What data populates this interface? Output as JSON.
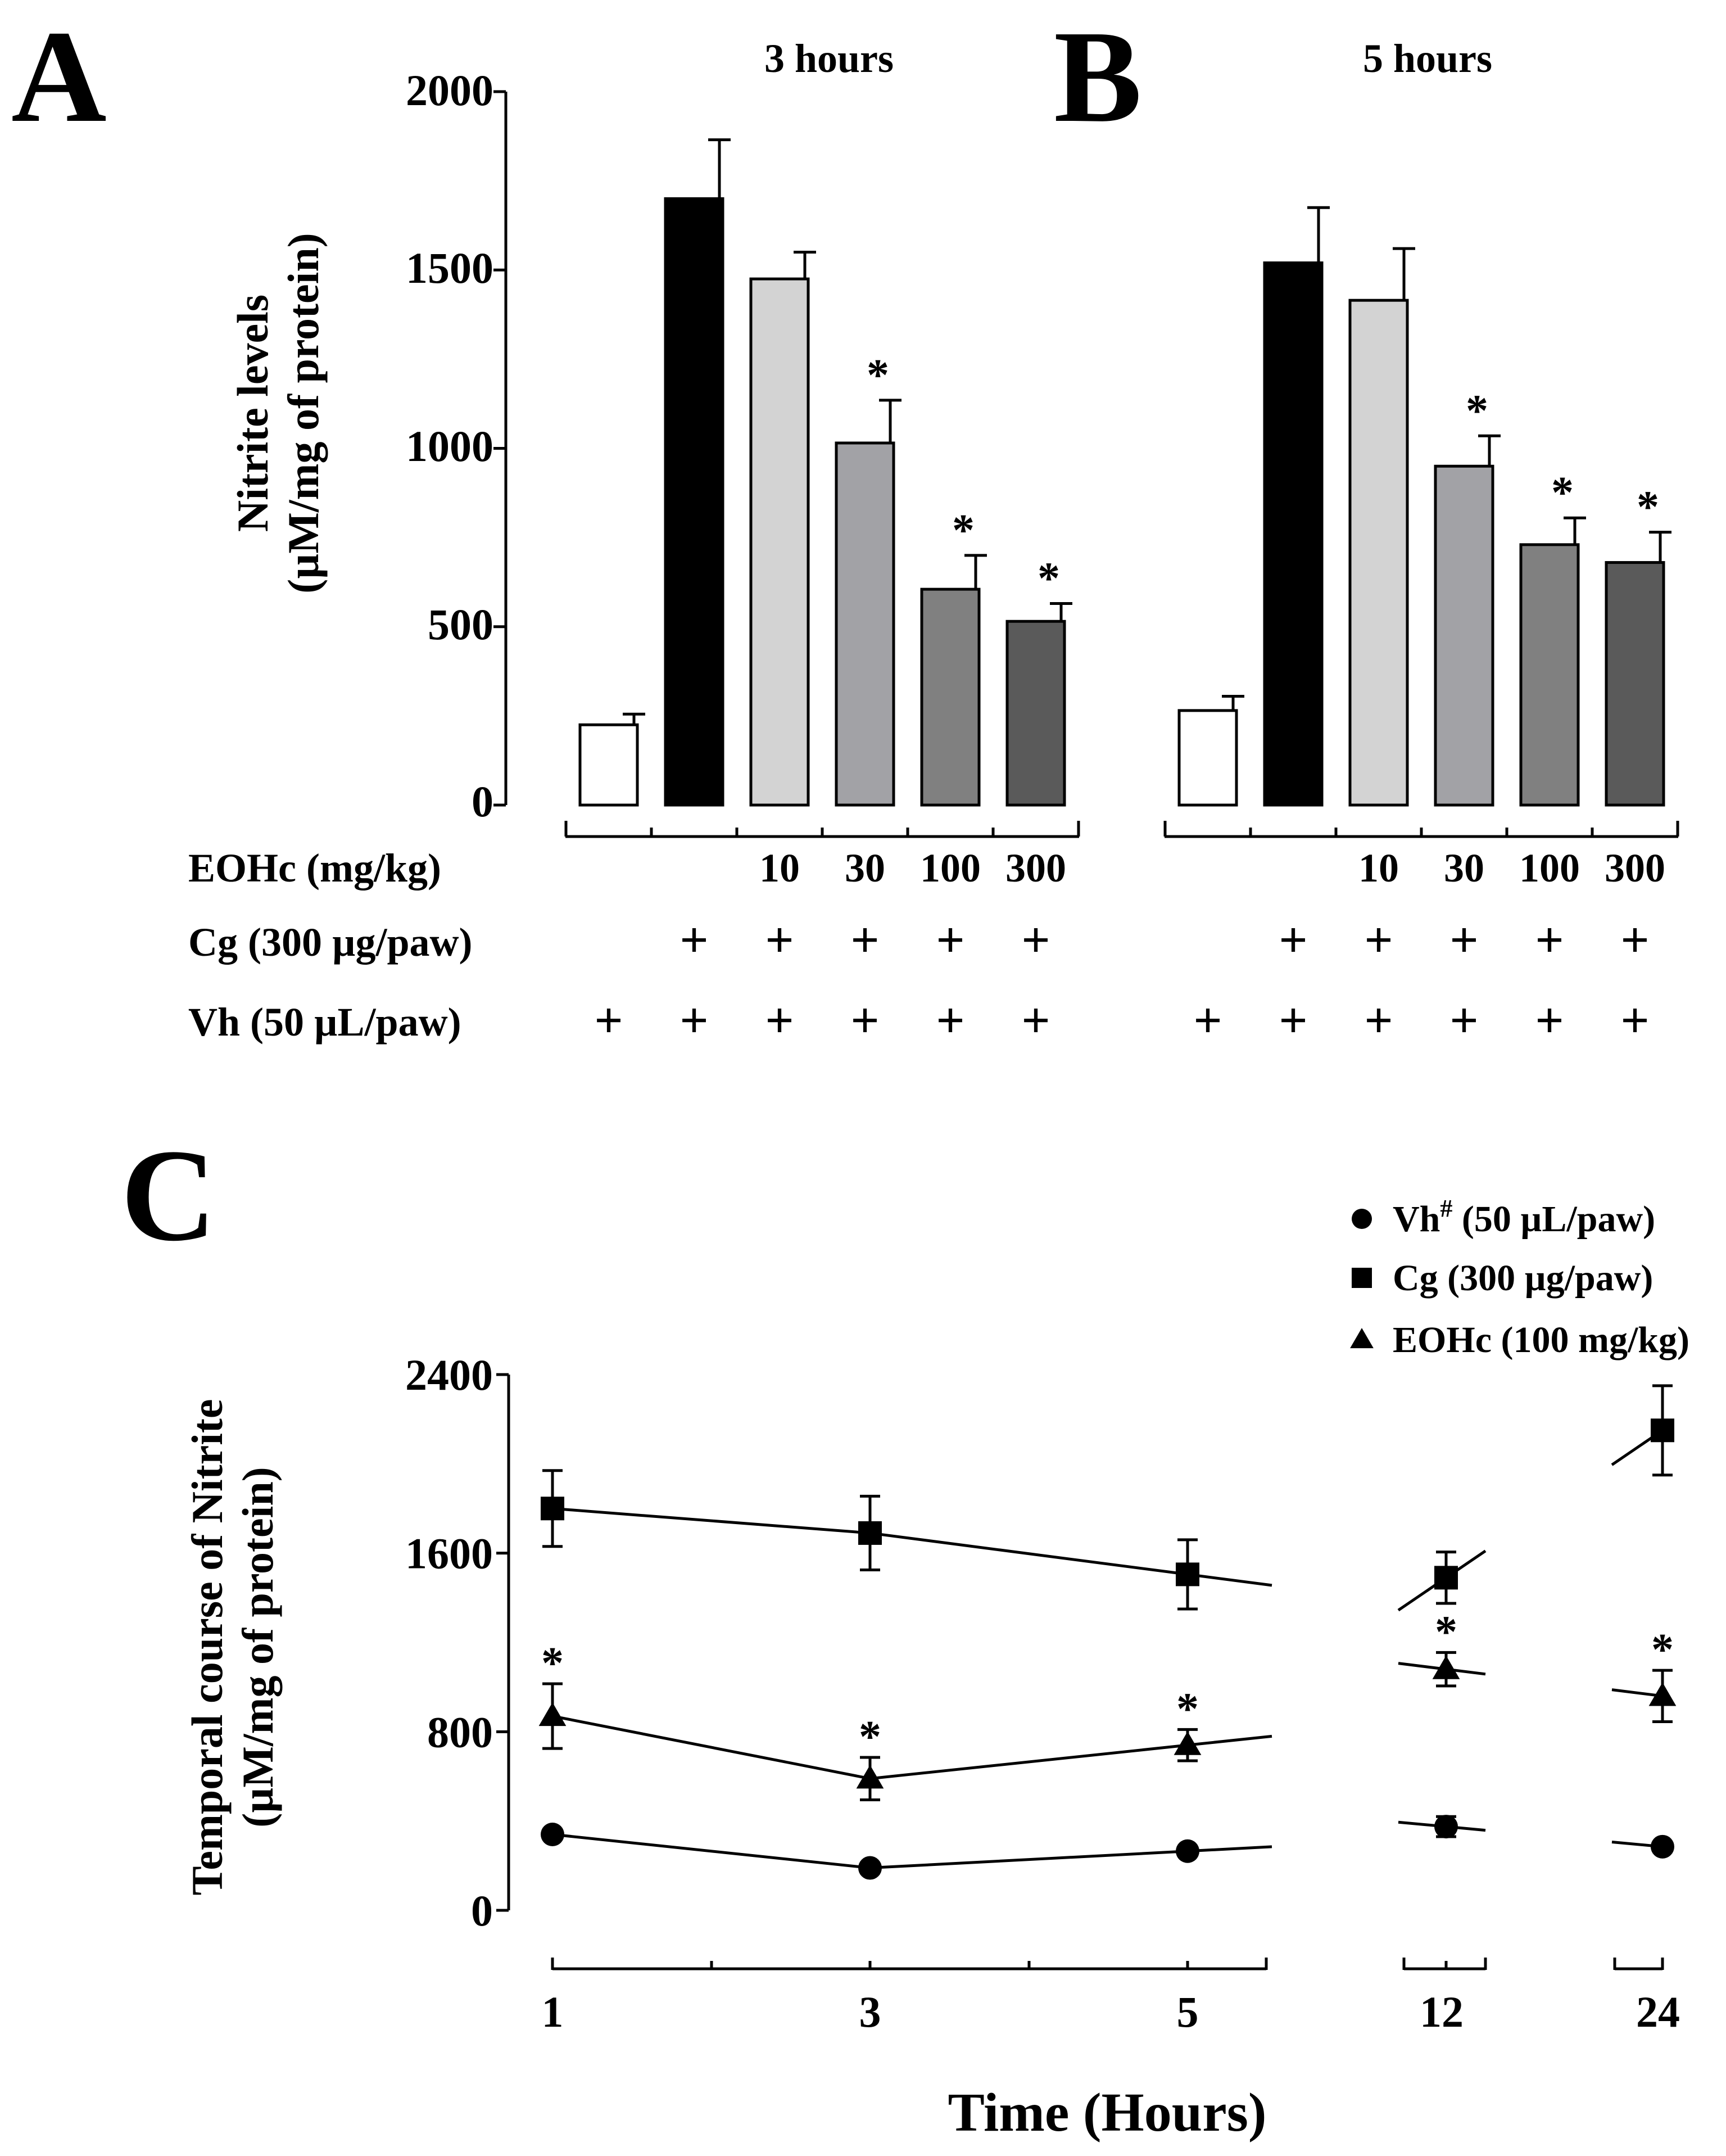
{
  "panels": {
    "a": {
      "letter": "A"
    },
    "b": {
      "letter": "B"
    },
    "c": {
      "letter": "C"
    }
  },
  "shared_ab": {
    "ylabel_line1": "Nitrite levels",
    "ylabel_line2": "(µM/mg of protein)",
    "y_ticks": [
      "0",
      "500",
      "1000",
      "1500",
      "2000"
    ],
    "row_labels": [
      "EOHc (mg/kg)",
      "Cg (300 µg/paw)",
      "Vh (50 µL/paw)"
    ],
    "plus": "+"
  },
  "chart_data": [
    {
      "type": "bar",
      "title": "3 hours",
      "ylabel": "Nitrite levels (µM/mg of protein)",
      "ylim": [
        0,
        2000
      ],
      "yticks": [
        0,
        500,
        1000,
        1500,
        2000
      ],
      "categories": [
        "Vh",
        "Cg",
        "EOHc 10",
        "EOHc 30",
        "EOHc 100",
        "EOHc 300"
      ],
      "eohc_doses": [
        "",
        "",
        "10",
        "30",
        "100",
        "300"
      ],
      "cg": [
        false,
        true,
        true,
        true,
        true,
        true
      ],
      "vh": [
        true,
        true,
        true,
        true,
        true,
        true
      ],
      "values": [
        225,
        1700,
        1475,
        1015,
        605,
        515
      ],
      "errors": [
        30,
        165,
        75,
        120,
        95,
        50
      ],
      "significant": [
        false,
        false,
        false,
        true,
        true,
        true
      ],
      "sig_marker": "*",
      "fills": [
        "#ffffff",
        "#000000",
        "#d3d3d3",
        "#a2a2a6",
        "#808080",
        "#5a5a5a"
      ]
    },
    {
      "type": "bar",
      "title": "5 hours",
      "ylabel": "Nitrite levels (µM/mg of protein)",
      "ylim": [
        0,
        2000
      ],
      "yticks": [
        0,
        500,
        1000,
        1500,
        2000
      ],
      "categories": [
        "Vh",
        "Cg",
        "EOHc 10",
        "EOHc 30",
        "EOHc 100",
        "EOHc 300"
      ],
      "eohc_doses": [
        "",
        "",
        "10",
        "30",
        "100",
        "300"
      ],
      "cg": [
        false,
        true,
        true,
        true,
        true,
        true
      ],
      "vh": [
        true,
        true,
        true,
        true,
        true,
        true
      ],
      "values": [
        265,
        1520,
        1415,
        950,
        730,
        680
      ],
      "errors": [
        40,
        155,
        145,
        85,
        75,
        85
      ],
      "significant": [
        false,
        false,
        false,
        true,
        true,
        true
      ],
      "sig_marker": "*",
      "fills": [
        "#ffffff",
        "#000000",
        "#d3d3d3",
        "#a2a2a6",
        "#808080",
        "#5a5a5a"
      ]
    },
    {
      "type": "line",
      "title": "",
      "xlabel": "Time (Hours)",
      "ylabel": "Temporal course of Nitrite (µM/mg of protein)",
      "ylabel_line1": "Temporal course of Nitrite",
      "ylabel_line2": "(µM/mg of protein)",
      "ylim": [
        0,
        2400
      ],
      "yticks": [
        0,
        800,
        1600,
        2400
      ],
      "x": [
        1,
        3,
        5,
        12,
        24
      ],
      "x_labels": [
        "1",
        "3",
        "5",
        "12",
        "24"
      ],
      "legend_position": "top-right",
      "sig_marker": "*",
      "series": [
        {
          "name": "Vh# (50 µL/paw)",
          "legend_main": "Vh",
          "legend_sup": "#",
          "legend_rest": " (50 µL/paw)",
          "marker": "circle",
          "values": [
            340,
            190,
            265,
            375,
            285
          ],
          "errors": [
            0,
            0,
            0,
            45,
            0
          ],
          "significant": [
            false,
            false,
            false,
            false,
            false
          ]
        },
        {
          "name": "Cg (300 µg/paw)",
          "legend_main": "Cg (300 µg/paw)",
          "legend_sup": "",
          "legend_rest": "",
          "marker": "square",
          "values": [
            1800,
            1690,
            1505,
            1490,
            2150
          ],
          "errors": [
            170,
            165,
            155,
            115,
            200
          ],
          "significant": [
            false,
            false,
            false,
            false,
            false
          ]
        },
        {
          "name": "EOHc (100 mg/kg)",
          "legend_main": "EOHc (100 mg/kg)",
          "legend_sup": "",
          "legend_rest": "",
          "marker": "triangle",
          "values": [
            870,
            590,
            740,
            1080,
            960
          ],
          "errors": [
            145,
            95,
            70,
            75,
            115
          ],
          "significant": [
            true,
            true,
            true,
            true,
            true
          ]
        }
      ]
    }
  ]
}
